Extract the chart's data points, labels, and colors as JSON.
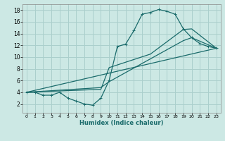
{
  "background_color": "#cce8e4",
  "grid_color": "#aacfcc",
  "line_color": "#1a6b6b",
  "xlabel": "Humidex (Indice chaleur)",
  "xlim": [
    -0.5,
    23.5
  ],
  "ylim": [
    0.5,
    19
  ],
  "xticks": [
    0,
    1,
    2,
    3,
    4,
    5,
    6,
    7,
    8,
    9,
    10,
    11,
    12,
    13,
    14,
    15,
    16,
    17,
    18,
    19,
    20,
    21,
    22,
    23
  ],
  "yticks": [
    2,
    4,
    6,
    8,
    10,
    12,
    14,
    16,
    18
  ],
  "curve1_x": [
    0,
    1,
    2,
    3,
    4,
    5,
    6,
    7,
    8,
    9,
    10,
    11,
    12,
    13,
    14,
    15,
    16,
    17,
    18,
    19,
    20,
    21,
    22,
    23
  ],
  "curve1_y": [
    4.0,
    4.0,
    3.5,
    3.5,
    4.0,
    3.0,
    2.5,
    2.0,
    1.8,
    3.0,
    6.0,
    11.8,
    12.2,
    14.5,
    17.3,
    17.6,
    18.1,
    17.8,
    17.3,
    14.8,
    13.3,
    12.3,
    11.8,
    11.5
  ],
  "curve2_x": [
    0,
    23
  ],
  "curve2_y": [
    4.0,
    11.5
  ],
  "curve3_x": [
    0,
    9,
    10,
    19,
    20,
    23
  ],
  "curve3_y": [
    4.0,
    4.8,
    5.8,
    12.8,
    13.3,
    11.5
  ],
  "curve4_x": [
    0,
    9,
    10,
    15,
    19,
    20,
    23
  ],
  "curve4_y": [
    4.0,
    4.5,
    8.2,
    10.5,
    14.7,
    14.8,
    11.5
  ]
}
